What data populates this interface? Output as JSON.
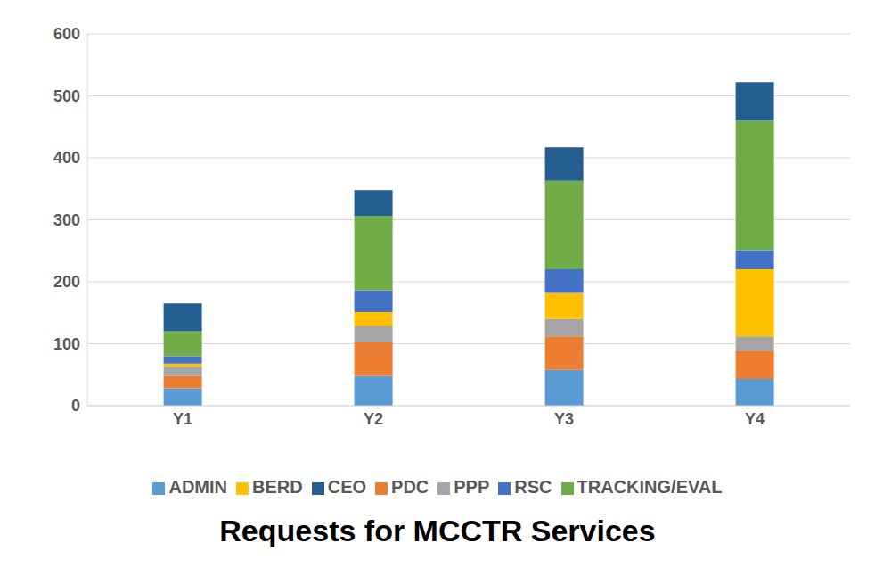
{
  "chart_data": {
    "type": "bar",
    "title": "Requests for MCCTR Services",
    "categories": [
      "Y1",
      "Y2",
      "Y3",
      "Y4"
    ],
    "stacked": true,
    "grid": true,
    "legend": "bottom",
    "ylim": [
      0,
      600
    ],
    "yticks": [
      0,
      100,
      200,
      300,
      400,
      500,
      600
    ],
    "series": [
      {
        "name": "ADMIN",
        "color": "#5b9bd5",
        "values": [
          28,
          48,
          58,
          43
        ]
      },
      {
        "name": "PDC",
        "color": "#ed7d31",
        "values": [
          20,
          54,
          54,
          46
        ]
      },
      {
        "name": "PPP",
        "color": "#a5a5a5",
        "values": [
          15,
          26,
          28,
          23
        ]
      },
      {
        "name": "BERD",
        "color": "#ffc000",
        "values": [
          5,
          23,
          42,
          108
        ]
      },
      {
        "name": "RSC",
        "color": "#4472c4",
        "values": [
          12,
          35,
          38,
          31
        ]
      },
      {
        "name": "TRACKING/EVAL",
        "color": "#70ad47",
        "values": [
          40,
          120,
          143,
          209
        ]
      },
      {
        "name": "CEO",
        "color": "#255e91",
        "values": [
          45,
          42,
          54,
          62
        ]
      }
    ]
  }
}
